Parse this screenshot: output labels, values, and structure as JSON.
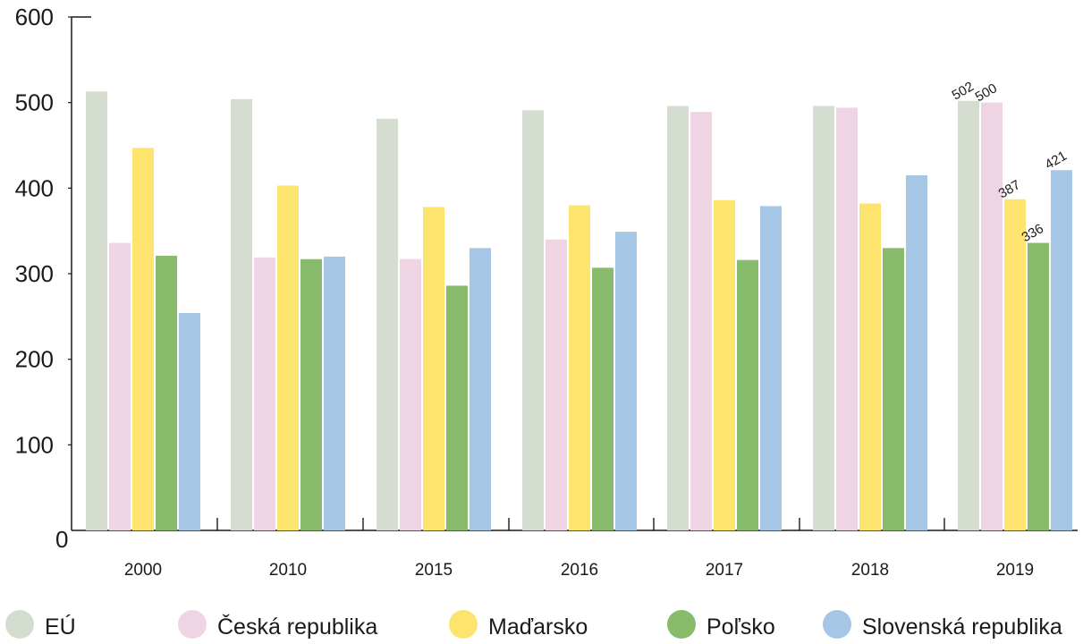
{
  "chart_data": {
    "type": "bar",
    "title": "",
    "xlabel": "",
    "ylabel": "",
    "ylim": [
      0,
      600
    ],
    "yticks": [
      "0",
      "100",
      "200",
      "300",
      "400",
      "500",
      "600"
    ],
    "categories": [
      "2000",
      "2010",
      "2015",
      "2016",
      "2017",
      "2018",
      "2019"
    ],
    "grid": false,
    "legend_position": "bottom",
    "series": [
      {
        "name": "EÚ",
        "color": "#d4ddd0",
        "values": [
          513,
          504,
          481,
          491,
          496,
          496,
          502
        ]
      },
      {
        "name": "Česká republika",
        "color": "#efd5e3",
        "values": [
          336,
          319,
          317,
          340,
          489,
          494,
          500
        ]
      },
      {
        "name": "Maďarsko",
        "color": "#fde46f",
        "values": [
          447,
          403,
          378,
          380,
          386,
          382,
          387
        ]
      },
      {
        "name": "Poľsko",
        "color": "#88bb6b",
        "values": [
          321,
          317,
          286,
          307,
          316,
          330,
          336
        ]
      },
      {
        "name": "Slovenská republika",
        "color": "#a6c6e6",
        "values": [
          254,
          320,
          330,
          349,
          379,
          415,
          421
        ]
      }
    ],
    "data_labels": [
      {
        "category": "2019",
        "series": "EÚ",
        "text": "502"
      },
      {
        "category": "2019",
        "series": "Česká republika",
        "text": "500"
      },
      {
        "category": "2019",
        "series": "Maďarsko",
        "text": "387"
      },
      {
        "category": "2019",
        "series": "Poľsko",
        "text": "336"
      },
      {
        "category": "2019",
        "series": "Slovenská republika",
        "text": "421"
      }
    ]
  }
}
